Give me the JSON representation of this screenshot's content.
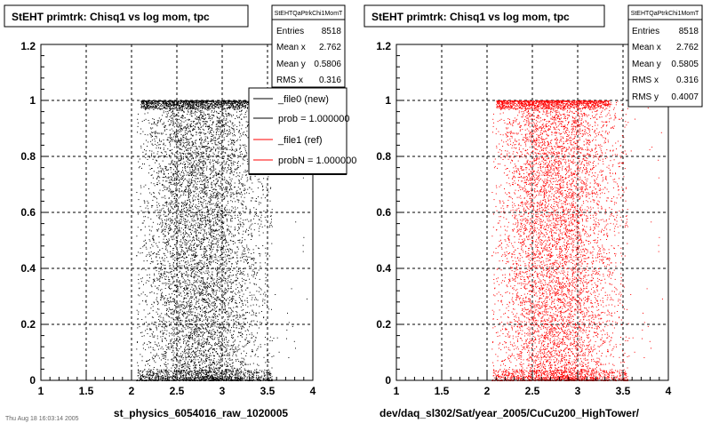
{
  "panels": [
    {
      "title": "StEHT primtrk: Chisq1 vs log mom, tpc",
      "xlabel": "st_physics_6054016_raw_1020005",
      "marker_color": "#000000",
      "stats": {
        "name": "StEHTQaPtrkChi1MomT",
        "rows": [
          {
            "label": "Entries",
            "value": "8518"
          },
          {
            "label": "Mean x",
            "value": "2.762"
          },
          {
            "label": "Mean y",
            "value": "0.5806"
          },
          {
            "label": "RMS x",
            "value": "0.316"
          }
        ]
      },
      "legend": [
        {
          "label": "_file0 (new)",
          "color": "#000000"
        },
        {
          "label": "prob = 1.000000",
          "color": "#000000"
        },
        {
          "label": "_file1 (ref)",
          "color": "#ff0000"
        },
        {
          "label": "probN = 1.000000",
          "color": "#ff0000"
        }
      ]
    },
    {
      "title": "StEHT primtrk: Chisq1 vs log mom, tpc",
      "xlabel": "dev/daq_sl302/Sat/year_2005/CuCu200_HighTower/",
      "marker_color": "#ff0000",
      "stats": {
        "name": "StEHTQaPtrkChi1MomT",
        "rows": [
          {
            "label": "Entries",
            "value": "8518"
          },
          {
            "label": "Mean x",
            "value": "2.762"
          },
          {
            "label": "Mean y",
            "value": "0.5805"
          },
          {
            "label": "RMS x",
            "value": "0.316"
          },
          {
            "label": "RMS y",
            "value": "0.4007"
          }
        ]
      },
      "legend": []
    }
  ],
  "footer_text": "Thu Aug 18 16:03:14 2005",
  "chart_data": [
    {
      "type": "scatter",
      "title": "StEHT primtrk: Chisq1 vs log mom, tpc",
      "xlabel": "st_physics_6054016_raw_1020005",
      "ylabel": "",
      "xlim": [
        1,
        4
      ],
      "ylim": [
        0,
        1.2
      ],
      "xticks": [
        "1",
        "1.5",
        "2",
        "2.5",
        "3",
        "3.5",
        "4"
      ],
      "yticks": [
        "0",
        "0.2",
        "0.4",
        "0.6",
        "0.8",
        "1",
        "1.2"
      ],
      "grid": true,
      "series": [
        {
          "name": "_file0 (new)",
          "color": "#000000",
          "entries": 8518,
          "mean_x": 2.762,
          "mean_y": 0.5806,
          "rms_x": 0.316,
          "x_range": [
            2.05,
            3.55
          ],
          "dense_bands_y": [
            0.0,
            1.0
          ]
        }
      ]
    },
    {
      "type": "scatter",
      "title": "StEHT primtrk: Chisq1 vs log mom, tpc",
      "xlabel": "dev/daq_sl302/Sat/year_2005/CuCu200_HighTower/",
      "ylabel": "",
      "xlim": [
        1,
        4
      ],
      "ylim": [
        0,
        1.2
      ],
      "xticks": [
        "1",
        "1.5",
        "2",
        "2.5",
        "3",
        "3.5",
        "4"
      ],
      "yticks": [
        "0",
        "0.2",
        "0.4",
        "0.6",
        "0.8",
        "1",
        "1.2"
      ],
      "grid": true,
      "series": [
        {
          "name": "_file1 (ref)",
          "color": "#ff0000",
          "entries": 8518,
          "mean_x": 2.762,
          "mean_y": 0.5805,
          "rms_x": 0.316,
          "rms_y": 0.4007,
          "x_range": [
            2.05,
            3.55
          ],
          "dense_bands_y": [
            0.0,
            1.0
          ]
        }
      ]
    }
  ]
}
